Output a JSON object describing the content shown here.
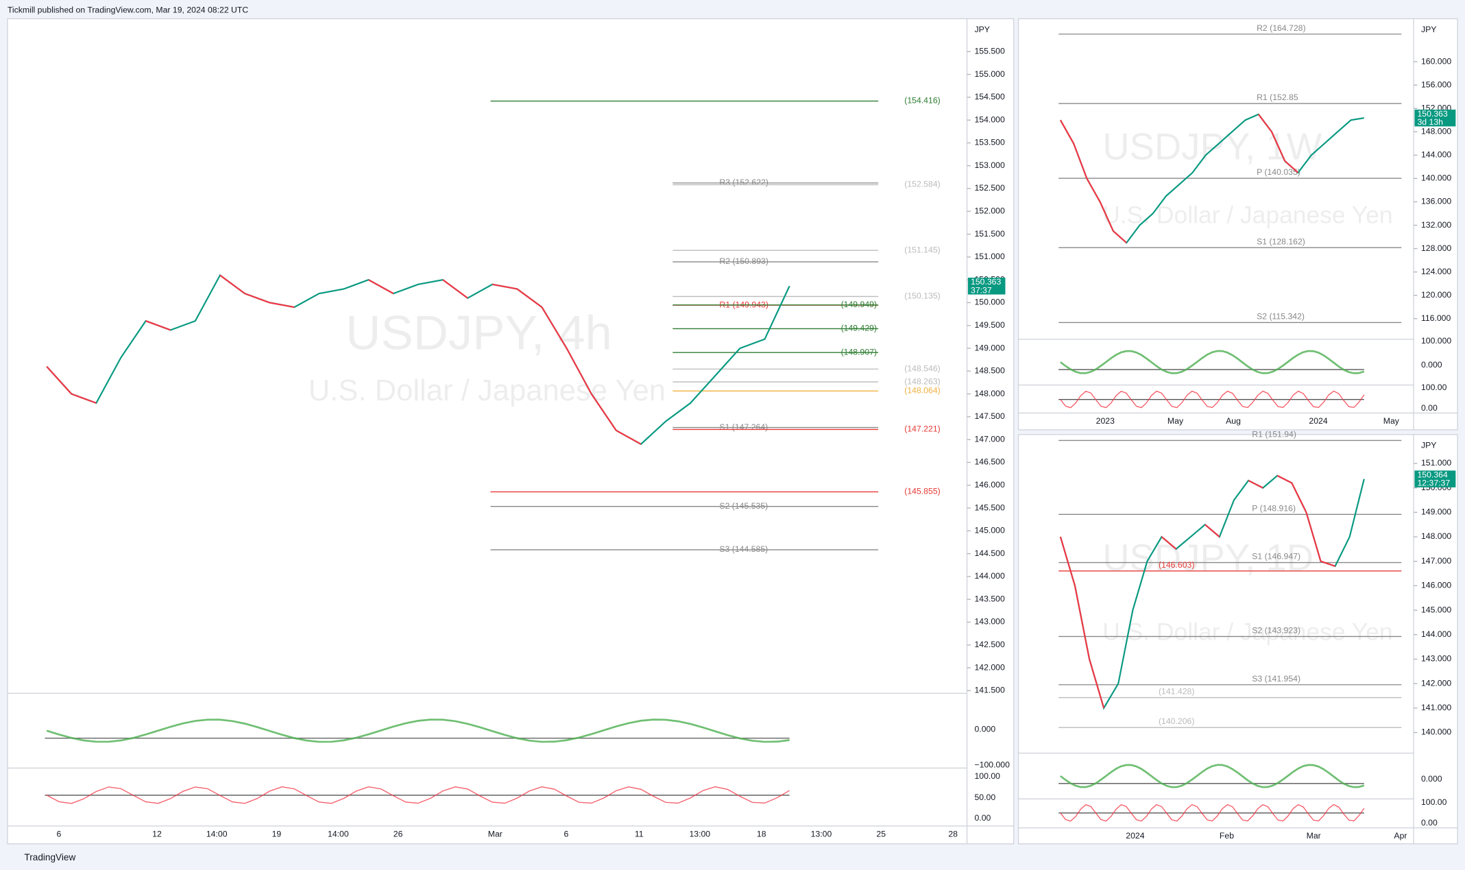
{
  "header": {
    "title": "Tickmill published on TradingView.com, Mar 19, 2024 08:22 UTC",
    "footer": "TradingView"
  },
  "panels": [
    {
      "currency": "JPY",
      "symbol": "USDJPY, 4h",
      "description": "U.S. Dollar / Japanese Yen",
      "ylim": [
        141.44,
        156.22
      ],
      "yticks": [
        {
          "value": 155.5,
          "label": "155.500"
        },
        {
          "value": 155,
          "label": "155.000"
        },
        {
          "value": 154.5,
          "label": "154.500"
        },
        {
          "value": 154,
          "label": "154.000"
        },
        {
          "value": 153.5,
          "label": "153.500"
        },
        {
          "value": 153,
          "label": "153.000"
        },
        {
          "value": 152.5,
          "label": "152.500"
        },
        {
          "value": 152,
          "label": "152.000"
        },
        {
          "value": 151.5,
          "label": "151.500"
        },
        {
          "value": 151,
          "label": "151.000"
        },
        {
          "value": 150.5,
          "label": "150.500"
        },
        {
          "value": 150,
          "label": "150.000"
        },
        {
          "value": 149.5,
          "label": "149.500"
        },
        {
          "value": 149,
          "label": "149.000"
        },
        {
          "value": 148.5,
          "label": "148.500"
        },
        {
          "value": 148,
          "label": "148.000"
        },
        {
          "value": 147.5,
          "label": "147.500"
        },
        {
          "value": 147,
          "label": "147.000"
        },
        {
          "value": 146.5,
          "label": "146.500"
        },
        {
          "value": 146,
          "label": "146.000"
        },
        {
          "value": 145.5,
          "label": "145.500"
        },
        {
          "value": 145,
          "label": "145.000"
        },
        {
          "value": 144.5,
          "label": "144.500"
        },
        {
          "value": 144,
          "label": "144.000"
        },
        {
          "value": 143.5,
          "label": "143.500"
        },
        {
          "value": 143,
          "label": "143.000"
        },
        {
          "value": 142.5,
          "label": "142.500"
        },
        {
          "value": 142,
          "label": "142.000"
        },
        {
          "value": 141.5,
          "label": "141.500"
        }
      ],
      "levels": [
        {
          "label": "(154.416)",
          "value": 154.416,
          "color": "#2e7d32"
        },
        {
          "label": "R3 (152.622)",
          "value": 152.622,
          "color": "#888888"
        },
        {
          "label": "(152.584)",
          "value": 152.584,
          "color": "#bbbbbb"
        },
        {
          "label": "(151.145)",
          "value": 151.145,
          "color": "#bbbbbb"
        },
        {
          "label": "R2 (150.893)",
          "value": 150.893,
          "color": "#888888"
        },
        {
          "label": "(150.135)",
          "value": 150.135,
          "color": "#bbbbbb"
        },
        {
          "label": "R1 (149.943)",
          "value": 149.943,
          "color": "#e53935"
        },
        {
          "label": "(149.949)",
          "value": 149.949,
          "color": "#2e7d32"
        },
        {
          "label": "(149.429)",
          "value": 149.429,
          "color": "#2e7d32"
        },
        {
          "label": "(148.907)",
          "value": 148.907,
          "color": "#2e7d32"
        },
        {
          "label": "(148.546)",
          "value": 148.546,
          "color": "#bbbbbb"
        },
        {
          "label": "(148.263)",
          "value": 148.263,
          "color": "#bbbbbb"
        },
        {
          "label": "(148.064)",
          "value": 148.064,
          "color": "#f0b040"
        },
        {
          "label": "S1 (147.264)",
          "value": 147.264,
          "color": "#888888"
        },
        {
          "label": "(147.221)",
          "value": 147.221,
          "color": "#e53935"
        },
        {
          "label": "(145.855)",
          "value": 145.855,
          "color": "#e53935"
        },
        {
          "label": "S2 (145.535)",
          "value": 145.535,
          "color": "#888888"
        },
        {
          "label": "S3 (144.585)",
          "value": 144.585,
          "color": "#888888"
        }
      ],
      "price_tag": {
        "price": "150.363",
        "countdown": "37:37"
      },
      "closes": [
        148.6,
        148.0,
        147.8,
        148.8,
        149.6,
        149.4,
        149.6,
        150.6,
        150.2,
        150.0,
        149.9,
        150.2,
        150.3,
        150.5,
        150.2,
        150.4,
        150.5,
        150.1,
        150.4,
        150.3,
        149.9,
        149.0,
        148.0,
        147.2,
        146.9,
        147.4,
        147.8,
        148.4,
        149.0,
        149.2,
        150.363
      ],
      "osc_labels": [
        "0.000",
        "−100.000",
        "100.00",
        "50.00",
        "0.00"
      ],
      "time_labels": [
        "6",
        "12",
        "14:00",
        "19",
        "14:00",
        "26",
        "Mar",
        "6",
        "11",
        "13:00",
        "18",
        "13:00",
        "25",
        "28"
      ]
    },
    {
      "currency": "JPY",
      "symbol": "USDJPY, 1W",
      "description": "U.S. Dollar / Japanese Yen",
      "ylim": [
        112.96,
        167.36
      ],
      "yticks": [
        {
          "value": 160,
          "label": "160.000"
        },
        {
          "value": 156,
          "label": "156.000"
        },
        {
          "value": 152,
          "label": "152.000"
        },
        {
          "value": 148,
          "label": "148.000"
        },
        {
          "value": 144,
          "label": "144.000"
        },
        {
          "value": 140,
          "label": "140.000"
        },
        {
          "value": 136,
          "label": "136.000"
        },
        {
          "value": 132,
          "label": "132.000"
        },
        {
          "value": 128,
          "label": "128.000"
        },
        {
          "value": 124,
          "label": "124.000"
        },
        {
          "value": 120,
          "label": "120.000"
        },
        {
          "value": 116,
          "label": "116.000"
        }
      ],
      "levels": [
        {
          "label": "R2 (164.728)",
          "value": 164.728,
          "color": "#888888"
        },
        {
          "label": "R1 (152.85",
          "value": 152.85,
          "color": "#888888"
        },
        {
          "label": "P (140.035)",
          "value": 140.035,
          "color": "#888888"
        },
        {
          "label": "S1 (128.162)",
          "value": 128.162,
          "color": "#888888"
        },
        {
          "label": "S2 (115.342)",
          "value": 115.342,
          "color": "#888888"
        }
      ],
      "price_tag": {
        "price": "150.363",
        "countdown": "3d 13h"
      },
      "closes": [
        150,
        146,
        140,
        136,
        131,
        129,
        132,
        134,
        137,
        139,
        141,
        144,
        146,
        148,
        150,
        151,
        148,
        143,
        141,
        144,
        146,
        148,
        150,
        150.363
      ],
      "osc_labels": [
        "100.000",
        "0.000",
        "100.00",
        "0.00"
      ],
      "time_labels": [
        "2023",
        "May",
        "Aug",
        "2024",
        "May"
      ]
    },
    {
      "currency": "JPY",
      "symbol": "USDJPY, 1D",
      "description": "U.S. Dollar / Japanese Yen",
      "ylim": [
        139.31,
        152.18
      ],
      "yticks": [
        {
          "value": 151,
          "label": "151.000"
        },
        {
          "value": 150,
          "label": "150.000"
        },
        {
          "value": 149,
          "label": "149.000"
        },
        {
          "value": 148,
          "label": "148.000"
        },
        {
          "value": 147,
          "label": "147.000"
        },
        {
          "value": 146,
          "label": "146.000"
        },
        {
          "value": 145,
          "label": "145.000"
        },
        {
          "value": 144,
          "label": "144.000"
        },
        {
          "value": 143,
          "label": "143.000"
        },
        {
          "value": 142,
          "label": "142.000"
        },
        {
          "value": 141,
          "label": "141.000"
        },
        {
          "value": 140,
          "label": "140.000"
        }
      ],
      "levels": [
        {
          "label": "R1 (151.94)",
          "value": 151.94,
          "color": "#888888"
        },
        {
          "label": "P (148.916)",
          "value": 148.916,
          "color": "#888888"
        },
        {
          "label": "S1 (146.947)",
          "value": 146.947,
          "color": "#888888"
        },
        {
          "label": "(146.603)",
          "value": 146.603,
          "color": "#e53935"
        },
        {
          "label": "S2 (143.923)",
          "value": 143.923,
          "color": "#888888"
        },
        {
          "label": "S3 (141.954)",
          "value": 141.954,
          "color": "#888888"
        },
        {
          "label": "(141.428)",
          "value": 141.428,
          "color": "#bbbbbb"
        },
        {
          "label": "(140.206)",
          "value": 140.206,
          "color": "#bbbbbb"
        }
      ],
      "price_tag": {
        "price": "150.364",
        "countdown": "12:37:37"
      },
      "closes": [
        148,
        146,
        143,
        141,
        142,
        145,
        147,
        148,
        147.5,
        148,
        148.5,
        148,
        149.5,
        150.3,
        150,
        150.5,
        150.2,
        149,
        147,
        146.8,
        148,
        150.364
      ],
      "osc_labels": [
        "0.000",
        "100.00",
        "0.00"
      ],
      "time_labels": [
        "2024",
        "Feb",
        "Mar",
        "Apr"
      ]
    }
  ]
}
